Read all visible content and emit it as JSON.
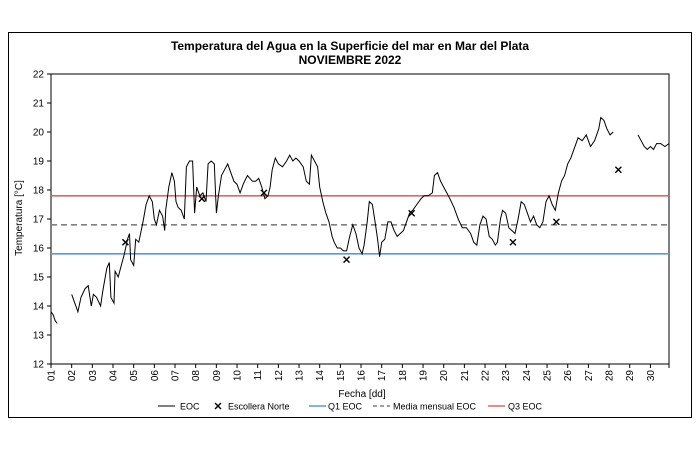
{
  "chart_data": {
    "type": "line",
    "title": "Temperatura del Agua en la Superficie del mar en Mar del Plata",
    "subtitle": "NOVIEMBRE 2022",
    "xlabel": "Fecha [dd]",
    "ylabel": "Temperatura [°C]",
    "ylim": [
      12,
      22
    ],
    "xlim": [
      1,
      30.9
    ],
    "y_ticks": [
      "12",
      "13",
      "14",
      "15",
      "16",
      "17",
      "18",
      "19",
      "20",
      "21",
      "22"
    ],
    "x_ticks": [
      "01",
      "02",
      "03",
      "04",
      "05",
      "06",
      "07",
      "08",
      "09",
      "10",
      "11",
      "12",
      "13",
      "14",
      "15",
      "16",
      "17",
      "18",
      "19",
      "20",
      "21",
      "22",
      "23",
      "24",
      "25",
      "26",
      "27",
      "28",
      "29",
      "30"
    ],
    "grid": false,
    "series": [
      {
        "name": "EOC",
        "style": "line",
        "color": "#000000",
        "segments": [
          [
            [
              1.0,
              13.8
            ],
            [
              1.1,
              13.7
            ],
            [
              1.2,
              13.5
            ],
            [
              1.3,
              13.4
            ]
          ],
          [
            [
              2.0,
              14.4
            ],
            [
              2.15,
              14.1
            ],
            [
              2.3,
              13.8
            ],
            [
              2.45,
              14.3
            ],
            [
              2.65,
              14.6
            ],
            [
              2.8,
              14.7
            ],
            [
              2.95,
              14.0
            ],
            [
              3.05,
              14.4
            ],
            [
              3.2,
              14.3
            ],
            [
              3.4,
              14.0
            ],
            [
              3.5,
              14.5
            ],
            [
              3.7,
              15.3
            ],
            [
              3.82,
              15.5
            ],
            [
              3.9,
              14.3
            ],
            [
              4.05,
              14.1
            ],
            [
              4.1,
              15.2
            ],
            [
              4.25,
              15.0
            ],
            [
              4.4,
              15.4
            ],
            [
              4.55,
              15.8
            ],
            [
              4.7,
              16.3
            ],
            [
              4.8,
              16.5
            ],
            [
              4.85,
              15.6
            ],
            [
              5.0,
              15.4
            ],
            [
              5.1,
              16.3
            ],
            [
              5.25,
              16.2
            ],
            [
              5.45,
              16.9
            ],
            [
              5.6,
              17.5
            ],
            [
              5.75,
              17.8
            ],
            [
              5.9,
              17.6
            ],
            [
              6.0,
              17.0
            ],
            [
              6.1,
              16.8
            ],
            [
              6.25,
              17.3
            ],
            [
              6.4,
              17.1
            ],
            [
              6.5,
              16.6
            ],
            [
              6.55,
              17.3
            ],
            [
              6.7,
              18.1
            ],
            [
              6.85,
              18.6
            ],
            [
              6.97,
              18.3
            ],
            [
              7.05,
              17.6
            ],
            [
              7.15,
              17.4
            ],
            [
              7.3,
              17.3
            ],
            [
              7.45,
              17.0
            ],
            [
              7.55,
              18.8
            ],
            [
              7.7,
              19.0
            ],
            [
              7.85,
              19.0
            ],
            [
              7.95,
              17.2
            ],
            [
              8.05,
              18.1
            ],
            [
              8.2,
              17.8
            ],
            [
              8.35,
              17.9
            ],
            [
              8.5,
              17.6
            ],
            [
              8.6,
              18.9
            ],
            [
              8.75,
              19.0
            ],
            [
              8.9,
              18.9
            ],
            [
              9.0,
              17.2
            ],
            [
              9.1,
              17.8
            ],
            [
              9.25,
              18.5
            ],
            [
              9.4,
              18.7
            ],
            [
              9.55,
              18.9
            ],
            [
              9.7,
              18.6
            ],
            [
              9.85,
              18.3
            ],
            [
              10.0,
              18.2
            ],
            [
              10.15,
              17.9
            ],
            [
              10.3,
              18.2
            ],
            [
              10.5,
              18.5
            ],
            [
              10.75,
              18.3
            ],
            [
              10.9,
              18.3
            ],
            [
              11.05,
              18.4
            ],
            [
              11.2,
              18.1
            ],
            [
              11.35,
              17.7
            ],
            [
              11.5,
              17.8
            ],
            [
              11.6,
              18.1
            ],
            [
              11.7,
              18.7
            ],
            [
              11.85,
              19.1
            ],
            [
              12.0,
              18.9
            ],
            [
              12.2,
              18.8
            ],
            [
              12.4,
              19.0
            ],
            [
              12.55,
              19.2
            ],
            [
              12.7,
              19.0
            ],
            [
              12.85,
              19.1
            ],
            [
              13.0,
              19.0
            ],
            [
              13.2,
              18.8
            ],
            [
              13.35,
              18.3
            ],
            [
              13.5,
              18.2
            ],
            [
              13.6,
              19.2
            ],
            [
              13.75,
              19.0
            ],
            [
              13.9,
              18.8
            ],
            [
              14.0,
              18.1
            ],
            [
              14.15,
              17.6
            ],
            [
              14.3,
              17.2
            ],
            [
              14.45,
              16.9
            ],
            [
              14.6,
              16.4
            ],
            [
              14.7,
              16.2
            ],
            [
              14.85,
              16.0
            ],
            [
              15.0,
              16.0
            ],
            [
              15.15,
              15.9
            ],
            [
              15.3,
              15.9
            ],
            [
              15.45,
              16.4
            ],
            [
              15.6,
              16.8
            ],
            [
              15.75,
              16.5
            ],
            [
              15.9,
              16.0
            ],
            [
              16.05,
              15.8
            ],
            [
              16.15,
              16.1
            ],
            [
              16.3,
              16.9
            ],
            [
              16.4,
              17.6
            ],
            [
              16.55,
              17.5
            ],
            [
              16.7,
              16.8
            ],
            [
              16.8,
              16.3
            ],
            [
              16.9,
              15.7
            ],
            [
              17.0,
              16.2
            ],
            [
              17.15,
              16.3
            ],
            [
              17.3,
              16.9
            ],
            [
              17.45,
              16.9
            ],
            [
              17.6,
              16.6
            ],
            [
              17.75,
              16.4
            ],
            [
              17.9,
              16.5
            ],
            [
              18.05,
              16.6
            ],
            [
              18.2,
              16.9
            ],
            [
              18.35,
              17.2
            ],
            [
              18.5,
              17.3
            ],
            [
              18.7,
              17.5
            ],
            [
              18.9,
              17.7
            ],
            [
              19.05,
              17.8
            ],
            [
              19.25,
              17.8
            ],
            [
              19.45,
              17.9
            ],
            [
              19.55,
              18.5
            ],
            [
              19.7,
              18.6
            ],
            [
              19.85,
              18.3
            ],
            [
              20.0,
              18.1
            ],
            [
              20.15,
              17.9
            ],
            [
              20.3,
              17.7
            ],
            [
              20.5,
              17.4
            ],
            [
              20.7,
              17.0
            ],
            [
              20.9,
              16.7
            ],
            [
              21.1,
              16.7
            ],
            [
              21.3,
              16.5
            ],
            [
              21.45,
              16.2
            ],
            [
              21.6,
              16.1
            ],
            [
              21.75,
              16.8
            ],
            [
              21.9,
              17.1
            ],
            [
              22.05,
              17.0
            ],
            [
              22.2,
              16.4
            ],
            [
              22.35,
              16.3
            ],
            [
              22.5,
              16.1
            ],
            [
              22.6,
              16.2
            ],
            [
              22.75,
              17.0
            ],
            [
              22.85,
              17.3
            ],
            [
              23.0,
              17.2
            ],
            [
              23.15,
              16.7
            ],
            [
              23.3,
              16.6
            ],
            [
              23.45,
              16.5
            ],
            [
              23.6,
              17.0
            ],
            [
              23.75,
              17.6
            ],
            [
              23.9,
              17.5
            ],
            [
              24.05,
              17.2
            ],
            [
              24.2,
              16.9
            ],
            [
              24.35,
              17.1
            ],
            [
              24.5,
              16.8
            ],
            [
              24.65,
              16.7
            ],
            [
              24.8,
              16.9
            ],
            [
              24.95,
              17.6
            ],
            [
              25.1,
              17.8
            ],
            [
              25.25,
              17.5
            ],
            [
              25.4,
              17.3
            ],
            [
              25.55,
              17.9
            ],
            [
              25.7,
              18.3
            ],
            [
              25.85,
              18.5
            ],
            [
              26.0,
              18.9
            ],
            [
              26.15,
              19.1
            ],
            [
              26.3,
              19.4
            ],
            [
              26.5,
              19.8
            ],
            [
              26.7,
              19.7
            ],
            [
              26.9,
              19.9
            ],
            [
              27.1,
              19.5
            ],
            [
              27.3,
              19.7
            ],
            [
              27.5,
              20.1
            ],
            [
              27.6,
              20.5
            ],
            [
              27.75,
              20.4
            ],
            [
              27.9,
              20.1
            ],
            [
              28.05,
              19.9
            ],
            [
              28.2,
              20.0
            ]
          ],
          [
            [
              29.4,
              19.9
            ],
            [
              29.55,
              19.7
            ],
            [
              29.7,
              19.5
            ],
            [
              29.85,
              19.4
            ],
            [
              30.0,
              19.5
            ],
            [
              30.15,
              19.4
            ],
            [
              30.3,
              19.6
            ],
            [
              30.5,
              19.6
            ],
            [
              30.7,
              19.5
            ],
            [
              30.9,
              19.6
            ]
          ]
        ]
      },
      {
        "name": "Escollera Norte",
        "style": "marker-x",
        "color": "#000000",
        "points": [
          [
            4.6,
            16.2
          ],
          [
            8.3,
            17.7
          ],
          [
            11.3,
            17.9
          ],
          [
            15.3,
            15.6
          ],
          [
            18.45,
            17.2
          ],
          [
            23.35,
            16.2
          ],
          [
            25.45,
            16.9
          ],
          [
            28.45,
            18.7
          ]
        ]
      },
      {
        "name": "Q1 EOC",
        "style": "hline",
        "color": "#5b9bd5",
        "value": 15.8
      },
      {
        "name": "Media mensual EOC",
        "style": "hline-dashed",
        "color": "#808080",
        "value": 16.8
      },
      {
        "name": "Q3 EOC",
        "style": "hline",
        "color": "#e06666",
        "value": 17.8
      }
    ],
    "legend": [
      "EOC",
      "Escollera Norte",
      "Q1 EOC",
      "Media mensual EOC",
      "Q3 EOC"
    ],
    "legend_position": "bottom"
  }
}
